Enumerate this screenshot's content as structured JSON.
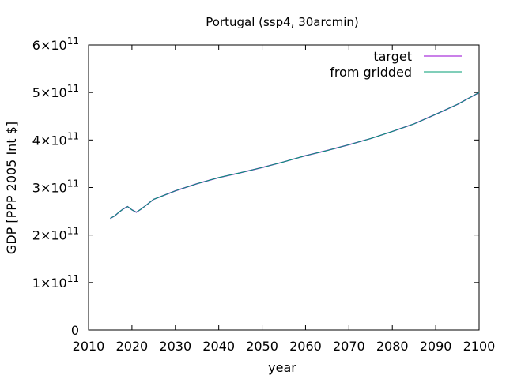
{
  "chart_data": {
    "type": "line",
    "title": "Portugal (ssp4, 30arcmin)",
    "xlabel": "year",
    "ylabel": "GDP [PPP 2005 Int $]",
    "xlim": [
      2010,
      2100
    ],
    "ylim": [
      0,
      600000000000
    ],
    "x_ticks": [
      2010,
      2020,
      2030,
      2040,
      2050,
      2060,
      2070,
      2080,
      2090,
      2100
    ],
    "y_ticks": [
      {
        "value": 0,
        "mantissa": "0",
        "exponent": ""
      },
      {
        "value": 100000000000,
        "mantissa": "1×10",
        "exponent": "11"
      },
      {
        "value": 200000000000,
        "mantissa": "2×10",
        "exponent": "11"
      },
      {
        "value": 300000000000,
        "mantissa": "3×10",
        "exponent": "11"
      },
      {
        "value": 400000000000,
        "mantissa": "4×10",
        "exponent": "11"
      },
      {
        "value": 500000000000,
        "mantissa": "5×10",
        "exponent": "11"
      },
      {
        "value": 600000000000,
        "mantissa": "6×10",
        "exponent": "11"
      }
    ],
    "grid": false,
    "legend": "top-right",
    "series": [
      {
        "name": "target",
        "color": "#9400d3",
        "x": [
          2015,
          2016,
          2017,
          2018,
          2019,
          2020,
          2021,
          2022,
          2023,
          2024,
          2025,
          2030,
          2035,
          2040,
          2045,
          2050,
          2055,
          2060,
          2065,
          2070,
          2075,
          2080,
          2085,
          2090,
          2095,
          2100
        ],
        "values": [
          235000000000,
          240000000000,
          248000000000,
          255000000000,
          260000000000,
          253000000000,
          248000000000,
          254000000000,
          261000000000,
          268000000000,
          275000000000,
          293000000000,
          308000000000,
          321000000000,
          331000000000,
          342000000000,
          354000000000,
          367000000000,
          378000000000,
          390000000000,
          403000000000,
          418000000000,
          434000000000,
          454000000000,
          475000000000,
          500000000000
        ]
      },
      {
        "name": "from gridded",
        "color": "#009e73",
        "x": [
          2015,
          2016,
          2017,
          2018,
          2019,
          2020,
          2021,
          2022,
          2023,
          2024,
          2025,
          2030,
          2035,
          2040,
          2045,
          2050,
          2055,
          2060,
          2065,
          2070,
          2075,
          2080,
          2085,
          2090,
          2095,
          2100
        ],
        "values": [
          235000000000,
          240000000000,
          248000000000,
          255000000000,
          260000000000,
          253000000000,
          248000000000,
          254000000000,
          261000000000,
          268000000000,
          275000000000,
          293000000000,
          308000000000,
          321000000000,
          331000000000,
          342000000000,
          354000000000,
          367000000000,
          378000000000,
          390000000000,
          403000000000,
          418000000000,
          434000000000,
          454000000000,
          475000000000,
          500000000000
        ]
      }
    ]
  }
}
